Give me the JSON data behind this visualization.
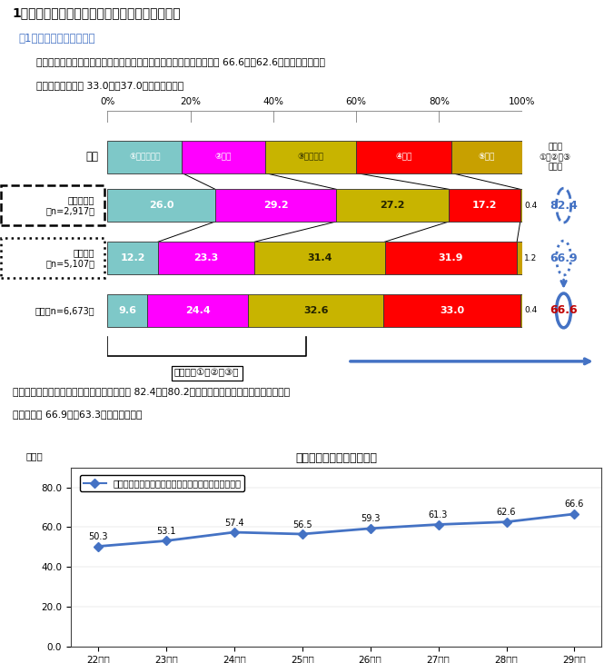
{
  "title_main": "1　介護サービスに従事する従業員の過不足状況",
  "subtitle1": "（1）従業員の過不足状況",
  "body1": "　　全体での不足感（「大いに不足」＋「不足」＋「やや不足」）は 66.6％（62.6％）であった。ま",
  "body2": "　　た「適当」は 33.0％（37.0％）であった。",
  "bar_colors": [
    "#7EC8C8",
    "#FF00FF",
    "#C8B400",
    "#FF0000",
    "#C8A000"
  ],
  "legend_labels": [
    "①大いに不足",
    "②不足",
    "③やや不足",
    "④適当",
    "⑤過剖"
  ],
  "header_widths": [
    18,
    20,
    22,
    23,
    17
  ],
  "rows": [
    {
      "label": "訪問介護員\n（n=2,917）",
      "values": [
        26.0,
        29.2,
        27.2,
        17.2,
        0.4
      ],
      "score": "82.4",
      "score_style": "dashed",
      "dashed_box": true
    },
    {
      "label": "介護職員\n（n=5,107）",
      "values": [
        12.2,
        23.3,
        31.4,
        31.9,
        1.2
      ],
      "score": "66.9",
      "score_style": "dotted",
      "dashed_box": true
    },
    {
      "label": "全体（n=6,673）",
      "values": [
        9.6,
        24.4,
        32.6,
        33.0,
        0.4
      ],
      "score": "66.6",
      "score_style": "solid",
      "dashed_box": false
    }
  ],
  "right_header": "不足感\n①＋②＋③\n（％）",
  "fusoku_label": "不足感（①＋②＋③）",
  "para_text1": "職種別で見ると、「訪問介護員」の不足感は 82.4％（80.2％）と最も高く、次いで「介護職員」",
  "para_text2": "の不足感が 66.9％（63.3％）であった。",
  "line_title": "従業員の不足感の経年変化",
  "line_legend": "不足感（「大いに不足」＋「不足」＋「やや不足」）",
  "line_x_labels": [
    "22年度",
    "23年度",
    "24年度",
    "25年度",
    "26年度",
    "27年度",
    "28年度",
    "29年度"
  ],
  "line_values": [
    50.3,
    53.1,
    57.4,
    56.5,
    59.3,
    61.3,
    62.6,
    66.6
  ],
  "line_color": "#4472C4",
  "line_ylabel": "（％）",
  "line_yticks": [
    0.0,
    20.0,
    40.0,
    60.0,
    80.0
  ]
}
